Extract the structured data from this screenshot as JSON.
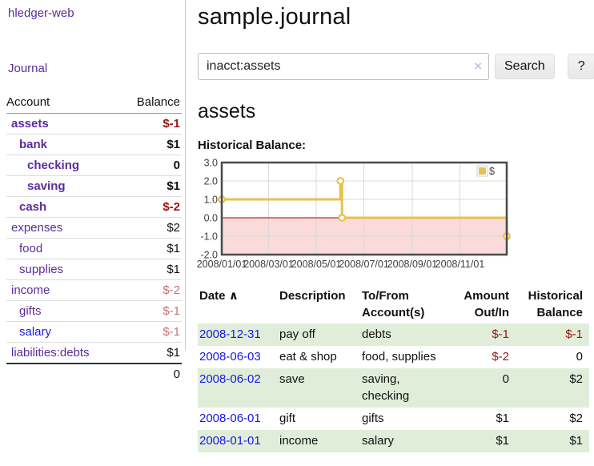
{
  "sidebar": {
    "brand": "hledger-web",
    "journal_link": "Journal",
    "accounts": {
      "account_header": "Account",
      "balance_header": "Balance",
      "rows": [
        {
          "name": "assets",
          "balance": "$-1",
          "depth": 1,
          "in_filter": true,
          "visited": true
        },
        {
          "name": "bank",
          "balance": "$1",
          "depth": 2,
          "in_filter": true,
          "visited": true
        },
        {
          "name": "checking",
          "balance": "0",
          "depth": 3,
          "in_filter": true,
          "visited": true
        },
        {
          "name": "saving",
          "balance": "$1",
          "depth": 3,
          "in_filter": true,
          "visited": true
        },
        {
          "name": "cash",
          "balance": "$-2",
          "depth": 2,
          "in_filter": true,
          "visited": true
        },
        {
          "name": "expenses",
          "balance": "$2",
          "depth": 1,
          "in_filter": false,
          "visited": true
        },
        {
          "name": "food",
          "balance": "$1",
          "depth": 2,
          "in_filter": false,
          "visited": true
        },
        {
          "name": "supplies",
          "balance": "$1",
          "depth": 2,
          "in_filter": false,
          "visited": true
        },
        {
          "name": "income",
          "balance": "$-2",
          "depth": 1,
          "in_filter": false,
          "visited": true
        },
        {
          "name": "gifts",
          "balance": "$-1",
          "depth": 2,
          "in_filter": false,
          "visited": true
        },
        {
          "name": "salary",
          "balance": "$-1",
          "depth": 2,
          "in_filter": false,
          "visited": false
        },
        {
          "name": "liabilities:debts",
          "balance": "$1",
          "depth": 1,
          "in_filter": false,
          "visited": true
        }
      ],
      "total": "0"
    }
  },
  "main": {
    "title": "sample.journal",
    "search": {
      "value": "inacct:assets",
      "clear_icon": "×",
      "search_button": "Search",
      "help_button": "?"
    },
    "account_heading": "assets",
    "chart_label": "Historical Balance:"
  },
  "chart_data": {
    "type": "line",
    "subtype": "step",
    "title": "Historical Balance:",
    "legend": [
      "$"
    ],
    "legend_position": "top-right",
    "grid": true,
    "ylim": [
      -2,
      3
    ],
    "y_ticks": [
      "3.0",
      "2.0",
      "1.0",
      "0.0",
      "-1.0",
      "-2.0"
    ],
    "x_range": [
      "2008-01-01",
      "2008-12-31"
    ],
    "x_ticks": [
      {
        "label": "2008/01/01",
        "date": "2008-01-01"
      },
      {
        "label": "2008/03/01",
        "date": "2008-03-01"
      },
      {
        "label": "2008/05/01",
        "date": "2008-05-01"
      },
      {
        "label": "2008/07/01",
        "date": "2008-07-01"
      },
      {
        "label": "2008/09/01",
        "date": "2008-09-01"
      },
      {
        "label": "2008/11/01",
        "date": "2008-11-01"
      }
    ],
    "series": [
      {
        "name": "$",
        "color": "#e6c14d",
        "points": [
          {
            "x": "2008-01-01",
            "y": 1
          },
          {
            "x": "2008-06-01",
            "y": 2
          },
          {
            "x": "2008-06-03",
            "y": 0
          },
          {
            "x": "2008-12-31",
            "y": -1
          }
        ]
      }
    ],
    "colors": {
      "negative_fill": "#fbdada",
      "zero_line": "#a00000",
      "gridline": "#d9d9d9",
      "border": "#4a4a4a",
      "axis_text": "#3d3d3d",
      "legend_text": "#444444",
      "legend_swatch_border": "#cccccc"
    }
  },
  "register": {
    "columns": [
      "Date",
      "Description",
      "To/From Account(s)",
      "Amount Out/In",
      "Historical Balance"
    ],
    "sort_icon": "∧",
    "rows": [
      {
        "date": "2008-12-31",
        "description": "pay off",
        "accounts": "debts",
        "amount": "$-1",
        "balance": "$-1"
      },
      {
        "date": "2008-06-03",
        "description": "eat & shop",
        "accounts": "food, supplies",
        "amount": "$-2",
        "balance": "0"
      },
      {
        "date": "2008-06-02",
        "description": "save",
        "accounts": "saving, checking",
        "amount": "0",
        "balance": "$2"
      },
      {
        "date": "2008-06-01",
        "description": "gift",
        "accounts": "gifts",
        "amount": "$1",
        "balance": "$2"
      },
      {
        "date": "2008-01-01",
        "description": "income",
        "accounts": "salary",
        "amount": "$1",
        "balance": "$1"
      }
    ]
  },
  "colors": {
    "accent_purple": "#5b2d9b",
    "link_blue": "#1717e6",
    "negative_red": "#9a1313",
    "muted_negative_red": "#c4736f",
    "row_stripe_green": "#e0eed9",
    "chart_gold": "#e6c14d"
  }
}
